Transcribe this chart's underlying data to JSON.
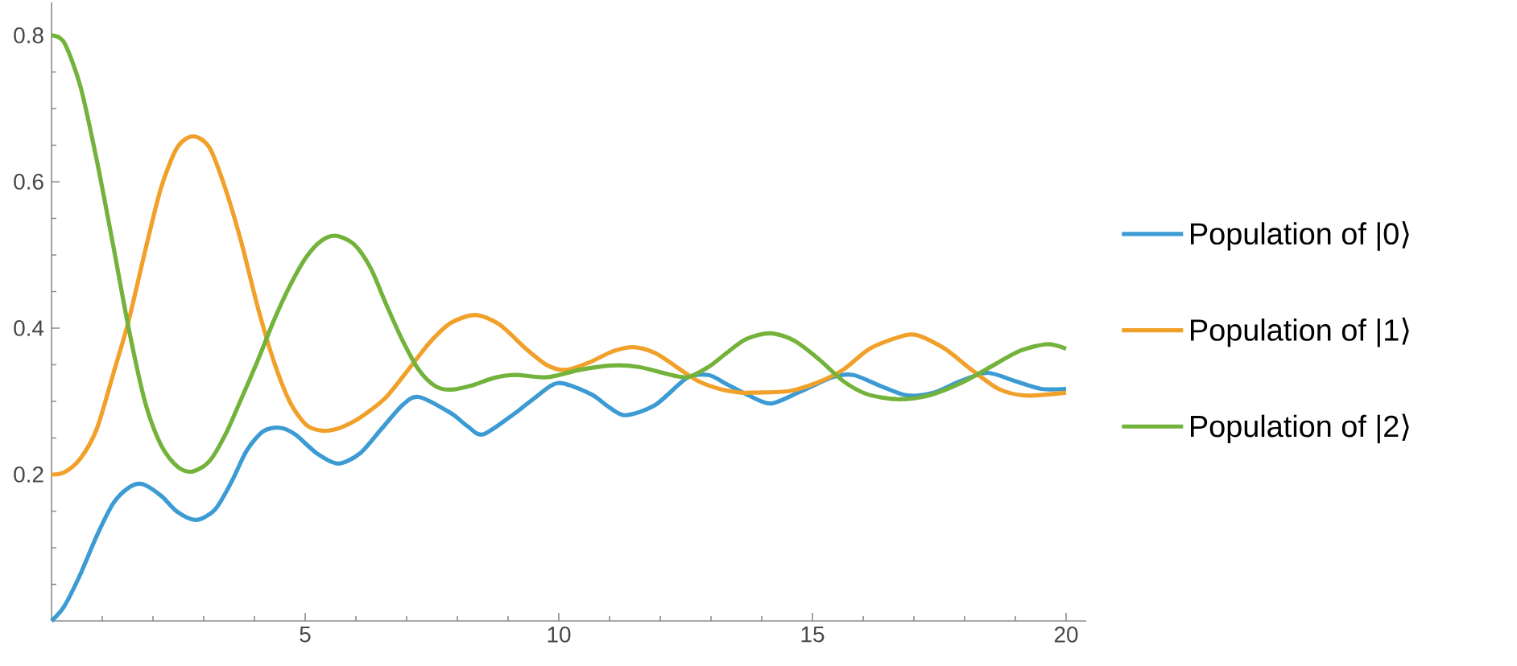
{
  "chart_data": {
    "type": "line",
    "series": [
      {
        "name": "Population of |0⟩",
        "color": "#3d9bd3",
        "x": [
          0,
          0.25,
          0.57,
          0.89,
          1.21,
          1.52,
          1.79,
          2.16,
          2.48,
          2.85,
          3.22,
          3.54,
          3.85,
          4.17,
          4.49,
          4.8,
          5.23,
          5.65,
          6.08,
          6.5,
          6.92,
          7.24,
          7.87,
          8.2,
          8.51,
          9.14,
          9.55,
          9.99,
          10.63,
          10.97,
          11.31,
          11.9,
          12.53,
          12.95,
          13.27,
          13.69,
          14.17,
          14.75,
          15.39,
          15.81,
          16.34,
          16.87,
          17.4,
          17.93,
          18.45,
          18.98,
          19.51,
          20
        ],
        "values": [
          0,
          0.02,
          0.064,
          0.116,
          0.16,
          0.182,
          0.187,
          0.171,
          0.149,
          0.138,
          0.152,
          0.189,
          0.233,
          0.259,
          0.264,
          0.255,
          0.229,
          0.215,
          0.229,
          0.262,
          0.295,
          0.306,
          0.284,
          0.266,
          0.255,
          0.284,
          0.306,
          0.325,
          0.31,
          0.293,
          0.281,
          0.295,
          0.332,
          0.336,
          0.325,
          0.31,
          0.297,
          0.313,
          0.333,
          0.336,
          0.321,
          0.308,
          0.312,
          0.328,
          0.339,
          0.328,
          0.317,
          0.317
        ]
      },
      {
        "name": "Population of |1⟩",
        "color": "#f1a02a",
        "x": [
          0,
          0.25,
          0.57,
          0.89,
          1.21,
          1.52,
          1.84,
          2.16,
          2.48,
          2.79,
          3.11,
          3.43,
          3.75,
          4.06,
          4.38,
          4.7,
          5.02,
          5.33,
          5.65,
          5.97,
          6.29,
          6.6,
          7.03,
          7.45,
          7.87,
          8.35,
          8.83,
          9.35,
          9.78,
          10.15,
          10.63,
          11.05,
          11.47,
          11.9,
          12.32,
          12.74,
          13.17,
          13.59,
          13.9,
          14.54,
          15.07,
          15.6,
          16.13,
          16.76,
          17.08,
          17.61,
          18.14,
          18.67,
          19.2,
          20
        ],
        "values": [
          0.2,
          0.203,
          0.222,
          0.262,
          0.336,
          0.41,
          0.504,
          0.592,
          0.647,
          0.662,
          0.647,
          0.59,
          0.515,
          0.43,
          0.355,
          0.299,
          0.268,
          0.26,
          0.263,
          0.273,
          0.288,
          0.306,
          0.343,
          0.38,
          0.407,
          0.418,
          0.405,
          0.372,
          0.349,
          0.343,
          0.354,
          0.368,
          0.374,
          0.366,
          0.347,
          0.328,
          0.317,
          0.312,
          0.312,
          0.314,
          0.325,
          0.343,
          0.372,
          0.389,
          0.39,
          0.372,
          0.343,
          0.317,
          0.308,
          0.312
        ]
      },
      {
        "name": "Population of |2⟩",
        "color": "#73b23b",
        "x": [
          0,
          0.25,
          0.57,
          0.89,
          1.21,
          1.52,
          1.84,
          2.16,
          2.48,
          2.77,
          3.11,
          3.43,
          3.75,
          4.06,
          4.38,
          4.7,
          5.02,
          5.33,
          5.62,
          5.97,
          6.29,
          6.6,
          6.92,
          7.24,
          7.56,
          7.87,
          8.3,
          8.72,
          9.14,
          9.78,
          10.41,
          11.05,
          11.58,
          12.1,
          12.53,
          12.95,
          13.27,
          13.69,
          14.17,
          14.64,
          15.12,
          15.6,
          16.07,
          16.66,
          17.29,
          17.93,
          18.56,
          19.09,
          19.62,
          20
        ],
        "values": [
          0.8,
          0.79,
          0.73,
          0.63,
          0.515,
          0.4,
          0.3,
          0.24,
          0.211,
          0.204,
          0.218,
          0.255,
          0.305,
          0.355,
          0.41,
          0.458,
          0.497,
          0.52,
          0.526,
          0.514,
          0.482,
          0.432,
          0.383,
          0.343,
          0.321,
          0.316,
          0.322,
          0.332,
          0.336,
          0.333,
          0.343,
          0.349,
          0.347,
          0.338,
          0.333,
          0.347,
          0.364,
          0.385,
          0.393,
          0.383,
          0.358,
          0.328,
          0.31,
          0.303,
          0.308,
          0.325,
          0.349,
          0.369,
          0.378,
          0.372
        ]
      }
    ],
    "xlim": [
      0,
      20.4
    ],
    "ylim": [
      0,
      0.845
    ],
    "xticks": [
      {
        "value": 1,
        "label": null
      },
      {
        "value": 2,
        "label": null
      },
      {
        "value": 3,
        "label": null
      },
      {
        "value": 4,
        "label": null
      },
      5,
      {
        "value": 6,
        "label": null
      },
      {
        "value": 7,
        "label": null
      },
      {
        "value": 8,
        "label": null
      },
      {
        "value": 9,
        "label": null
      },
      10,
      {
        "value": 11,
        "label": null
      },
      {
        "value": 12,
        "label": null
      },
      {
        "value": 13,
        "label": null
      },
      {
        "value": 14,
        "label": null
      },
      15,
      {
        "value": 16,
        "label": null
      },
      {
        "value": 17,
        "label": null
      },
      {
        "value": 18,
        "label": null
      },
      {
        "value": 19,
        "label": null
      },
      20
    ],
    "yticks": [
      {
        "value": 0.05,
        "label": null
      },
      {
        "value": 0.1,
        "label": null
      },
      {
        "value": 0.15,
        "label": null
      },
      0.2,
      {
        "value": 0.25,
        "label": null
      },
      {
        "value": 0.3,
        "label": null
      },
      {
        "value": 0.35,
        "label": null
      },
      0.4,
      {
        "value": 0.45,
        "label": null
      },
      {
        "value": 0.5,
        "label": null
      },
      {
        "value": 0.55,
        "label": null
      },
      0.6,
      {
        "value": 0.65,
        "label": null
      },
      {
        "value": 0.7,
        "label": null
      },
      {
        "value": 0.75,
        "label": null
      },
      0.8
    ],
    "legend": "right",
    "line_style": "solid"
  }
}
